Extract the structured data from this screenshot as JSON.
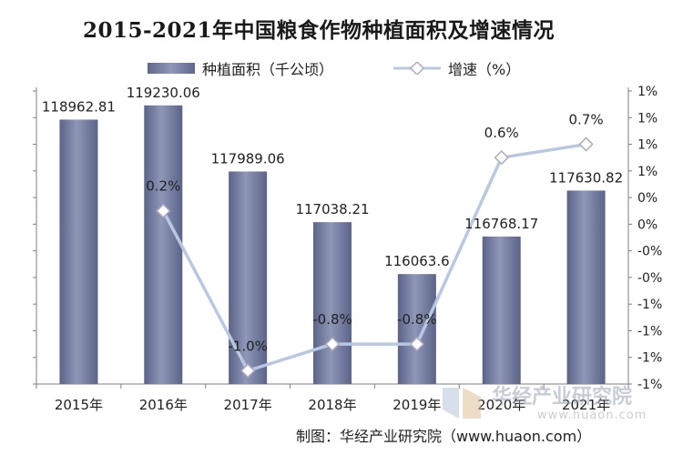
{
  "title": "2015-2021年中国粮食作物种植面积及增速情况",
  "legend": {
    "bar_label": "种植面积（千公顷）",
    "line_label": "增速（%）"
  },
  "source": "制图：华经产业研究院（www.huaon.com）",
  "watermark": {
    "name": "华经产业研究院",
    "url": "www.huaon.com"
  },
  "colors": {
    "bar": "#707a9e",
    "line": "#b8c8e0",
    "marker_fill": "#ffffff",
    "marker_stroke": "#b0a8c0",
    "axis_text": "#222222"
  },
  "chart_data": {
    "type": "bar",
    "title": "2015-2021年中国粮食作物种植面积及增速情况",
    "categories": [
      "2015年",
      "2016年",
      "2017年",
      "2018年",
      "2019年",
      "2020年",
      "2021年"
    ],
    "series": [
      {
        "name": "种植面积（千公顷）",
        "type": "bar",
        "axis": "left",
        "values": [
          118962.81,
          119230.06,
          117989.06,
          117038.21,
          116063.6,
          116768.17,
          117630.82
        ],
        "labels": [
          "118962.81",
          "119230.06",
          "117989.06",
          "117038.21",
          "116063.6",
          "116768.17",
          "117630.82"
        ]
      },
      {
        "name": "增速（%）",
        "type": "line",
        "axis": "right",
        "values": [
          null,
          0.2,
          -1.0,
          -0.8,
          -0.8,
          0.6,
          0.7
        ],
        "labels": [
          "",
          "0.2%",
          "-1.0%",
          "-0.8%",
          "-0.8%",
          "0.6%",
          "0.7%"
        ]
      }
    ],
    "y_left": {
      "ylim": [
        114000,
        119500
      ],
      "tick_labels_visible": false
    },
    "y_right": {
      "ylim": [
        -1.1,
        1.1
      ],
      "ticks": [
        -1.1,
        -0.9,
        -0.7,
        -0.5,
        -0.3,
        -0.1,
        0.1,
        0.3,
        0.5,
        0.7,
        0.9,
        1.1
      ],
      "tick_labels": [
        "-1%",
        "-1%",
        "-1%",
        "-1%",
        "-0%",
        "-0%",
        "0%",
        "0%",
        "1%",
        "1%",
        "1%",
        "1%"
      ]
    },
    "grid": false,
    "legend_position": "top"
  }
}
